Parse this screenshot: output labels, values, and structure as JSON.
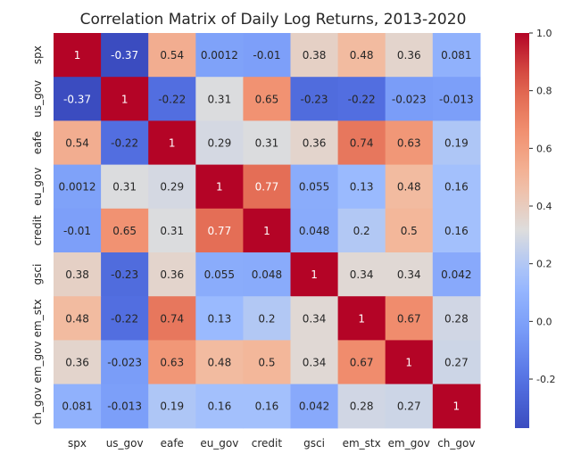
{
  "chart_data": {
    "type": "heatmap",
    "title": "Correlation Matrix of Daily Log Returns, 2013-2020",
    "xlabel": "",
    "ylabel": "",
    "x_categories": [
      "spx",
      "us_gov",
      "eafe",
      "eu_gov",
      "credit",
      "gsci",
      "em_stx",
      "em_gov",
      "ch_gov"
    ],
    "y_categories": [
      "spx",
      "us_gov",
      "eafe",
      "eu_gov",
      "credit",
      "gsci",
      "em_stx",
      "em_gov",
      "ch_gov"
    ],
    "values": [
      [
        "1",
        "-0.37",
        "0.54",
        "0.0012",
        "-0.01",
        "0.38",
        "0.48",
        "0.36",
        "0.081"
      ],
      [
        "-0.37",
        "1",
        "-0.22",
        "0.31",
        "0.65",
        "-0.23",
        "-0.22",
        "-0.023",
        "-0.013"
      ],
      [
        "0.54",
        "-0.22",
        "1",
        "0.29",
        "0.31",
        "0.36",
        "0.74",
        "0.63",
        "0.19"
      ],
      [
        "0.0012",
        "0.31",
        "0.29",
        "1",
        "0.77",
        "0.055",
        "0.13",
        "0.48",
        "0.16"
      ],
      [
        "-0.01",
        "0.65",
        "0.31",
        "0.77",
        "1",
        "0.048",
        "0.2",
        "0.5",
        "0.16"
      ],
      [
        "0.38",
        "-0.23",
        "0.36",
        "0.055",
        "0.048",
        "1",
        "0.34",
        "0.34",
        "0.042"
      ],
      [
        "0.48",
        "-0.22",
        "0.74",
        "0.13",
        "0.2",
        "0.34",
        "1",
        "0.67",
        "0.28"
      ],
      [
        "0.36",
        "-0.023",
        "0.63",
        "0.48",
        "0.5",
        "0.34",
        "0.67",
        "1",
        "0.27"
      ],
      [
        "0.081",
        "-0.013",
        "0.19",
        "0.16",
        "0.16",
        "0.042",
        "0.28",
        "0.27",
        "1"
      ]
    ],
    "colorbar": {
      "colormap": "coolwarm",
      "range": [
        -0.37,
        1.0
      ],
      "ticks": [
        "1.0",
        "0.8",
        "0.6",
        "0.4",
        "0.2",
        "0.0",
        "-0.2"
      ],
      "tick_values": [
        1.0,
        0.8,
        0.6,
        0.4,
        0.2,
        0.0,
        -0.2
      ]
    },
    "annotated": true,
    "grid": false
  }
}
